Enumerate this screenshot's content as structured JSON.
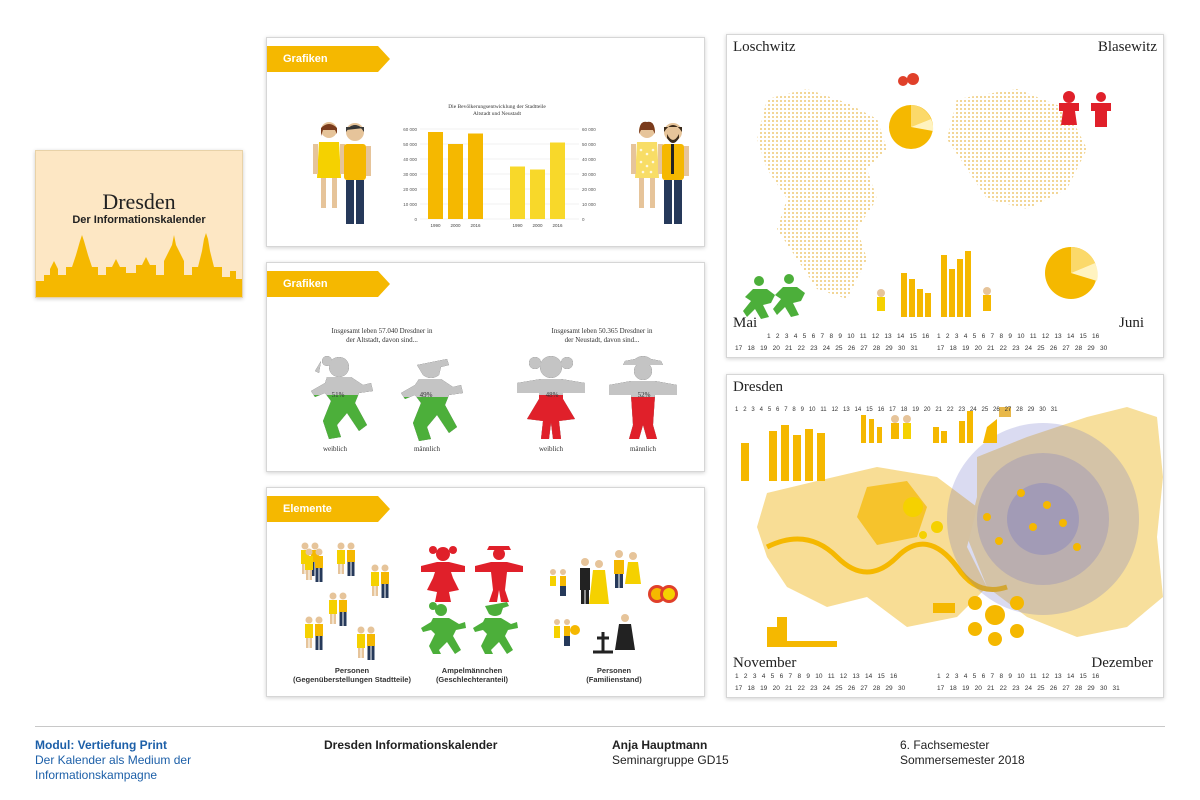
{
  "cover": {
    "title": "Dresden",
    "subtitle": "Der Informationskalender"
  },
  "panel_charts": {
    "label": "Grafiken",
    "chart_title": "Die Bevölkerungsentwicklung der Stadtteile Altstadt und Neustadt"
  },
  "panel_ampel": {
    "label": "Grafiken",
    "left_caption": "Insgesamt leben 57.040 Dresdner in der Altstadt, davon sind...",
    "right_caption": "Insgesamt leben 50.365 Dresdner in der Neustadt, davon sind...",
    "figures": [
      {
        "pct": "51%",
        "label": "weiblich"
      },
      {
        "pct": "49%",
        "label": "männlich"
      },
      {
        "pct": "48%",
        "label": "weiblich"
      },
      {
        "pct": "52%",
        "label": "männlich"
      }
    ]
  },
  "panel_elements": {
    "label": "Elemente",
    "groups": [
      {
        "title": "Personen",
        "subtitle": "(Gegenüberstellungen Stadtteile)"
      },
      {
        "title": "Ampelmännchen",
        "subtitle": "(Geschlechteranteil)"
      },
      {
        "title": "Personen",
        "subtitle": "(Familienstand)"
      }
    ]
  },
  "calendar_top": {
    "left_title": "Loschwitz",
    "right_title": "Blasewitz",
    "left_month": "Mai",
    "right_month": "Juni",
    "left_row1": "1  2  3  4  5  6  7  8  9  10  11  12  13  14  15  16",
    "left_row2": "17  18  19  20  21  22  23  24  25  26  27  28  29  30  31",
    "right_row1": "1  2  3  4  5  6  7  8  9  10  11  12  13  14  15  16",
    "right_row2": "17  18  19  20  21  22  23  24  25  26  27  28  29  30"
  },
  "calendar_bottom": {
    "title": "Dresden",
    "left_month": "November",
    "right_month": "Dezember",
    "top_row": "1  2  3  4  5  6  7  8  9  10  11  12  13  14  15  16  17  18  19  20  21  22  23  24  25  26  27  28  29  30  31",
    "left_row1": "1  2  3  4  5  6  7  8  9  10  11  12  13  14  15  16",
    "left_row2": "17  18  19  20  21  22  23  24  25  26  27  28  29  30",
    "right_row1": "1  2  3  4  5  6  7  8  9  10  11  12  13  14  15  16",
    "right_row2": "17  18  19  20  21  22  23  24  25  26  27  28  29  30  31"
  },
  "footer": {
    "module_title": "Modul: Vertiefung Print",
    "module_line2": "Der Kalender als Medium der",
    "module_line3": "Informationskampagne",
    "project": "Dresden Informationskalender",
    "author": "Anja Hauptmann",
    "group": "Seminargruppe GD15",
    "semester": "6. Fachsemester",
    "term": "Sommersemester 2018"
  },
  "colors": {
    "accent": "#f5b800",
    "accent_light": "#fbd96a",
    "green": "#4caf3a",
    "red": "#e0202a",
    "grey": "#bdbdbd",
    "blue": "#1c5fa8"
  },
  "chart_data": {
    "type": "bar",
    "title": "Die Bevölkerungsentwicklung der Stadtteile Altstadt und Neustadt",
    "ylim": [
      0,
      60000
    ],
    "yticks": [
      "60 000",
      "50 000",
      "40 000",
      "30 000",
      "20 000",
      "10 000",
      "0"
    ],
    "series": [
      {
        "categories": [
          "1990",
          "2000",
          "2016"
        ],
        "values": [
          58000,
          50000,
          57000
        ]
      },
      {
        "categories": [
          "1990",
          "2000",
          "2016"
        ],
        "values": [
          35000,
          33000,
          51000
        ]
      }
    ]
  }
}
